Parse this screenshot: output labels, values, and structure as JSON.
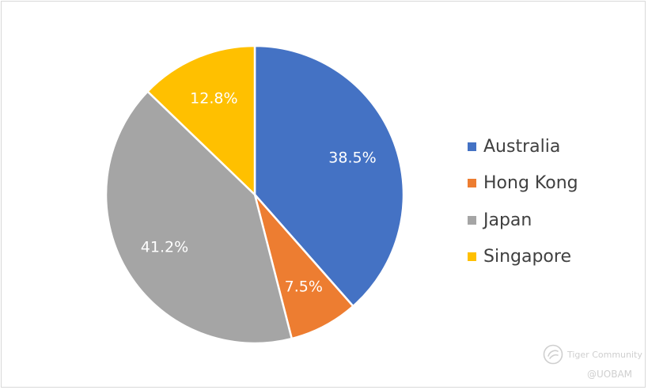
{
  "chart_data": {
    "type": "pie",
    "categories": [
      "Australia",
      "Hong Kong",
      "Japan",
      "Singapore"
    ],
    "values": [
      38.5,
      7.5,
      41.2,
      12.8
    ],
    "value_labels": [
      "38.5%",
      "7.5%",
      "41.2%",
      "12.8%"
    ],
    "colors": [
      "#4472C4",
      "#ED7D31",
      "#A5A5A5",
      "#FFC000"
    ],
    "legend": "right",
    "start_angle_deg": 0,
    "direction": "clockwise"
  },
  "watermark": {
    "brand": "Tiger Community",
    "handle": "@UOBAM",
    "icon": "tiger-logo-icon"
  }
}
